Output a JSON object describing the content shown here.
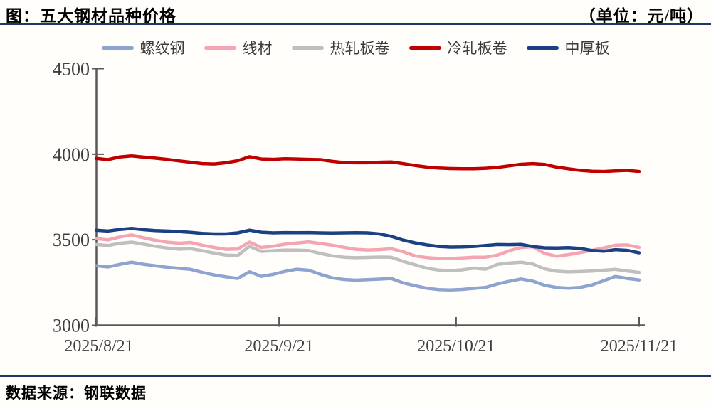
{
  "header": {
    "title": "图：五大钢材品种价格",
    "unit": "（单位：元/吨）",
    "rule_color": "#1F3864"
  },
  "footer": {
    "source": "数据来源：钢联数据",
    "rule_color": "#1F3864"
  },
  "chart_data": {
    "type": "line",
    "title": "五大钢材品种价格",
    "unit_label": "元/吨",
    "grid": false,
    "legend_position": "top",
    "axis_color": "#595959",
    "tick_label_color": "#3f3f3f",
    "ylim": [
      3000,
      4500
    ],
    "y_ticks": [
      3000,
      3500,
      4000,
      4500
    ],
    "x_tick_labels": [
      "2025/8/21",
      "2025/9/21",
      "2025/10/21",
      "2025/11/21"
    ],
    "x_tick_days": [
      0,
      31,
      61,
      92
    ],
    "x_total_days": 92,
    "sample_step_days": 2,
    "series": [
      {
        "key": "rebar",
        "name": "螺纹钢",
        "color": "#8FA3D0",
        "values": [
          3348,
          3341,
          3356,
          3369,
          3357,
          3348,
          3339,
          3333,
          3327,
          3309,
          3294,
          3283,
          3274,
          3313,
          3286,
          3298,
          3315,
          3328,
          3322,
          3298,
          3277,
          3268,
          3264,
          3267,
          3270,
          3274,
          3248,
          3232,
          3217,
          3209,
          3207,
          3210,
          3216,
          3222,
          3242,
          3257,
          3271,
          3258,
          3234,
          3221,
          3217,
          3221,
          3236,
          3261,
          3286,
          3274,
          3265
        ]
      },
      {
        "key": "wire-rod",
        "name": "线材",
        "color": "#F4A5B2",
        "values": [
          3507,
          3499,
          3516,
          3528,
          3512,
          3497,
          3486,
          3480,
          3484,
          3468,
          3455,
          3444,
          3446,
          3486,
          3455,
          3462,
          3474,
          3481,
          3488,
          3478,
          3468,
          3456,
          3444,
          3440,
          3442,
          3448,
          3430,
          3406,
          3396,
          3391,
          3390,
          3394,
          3398,
          3398,
          3410,
          3436,
          3455,
          3459,
          3420,
          3404,
          3413,
          3425,
          3438,
          3452,
          3468,
          3470,
          3455
        ]
      },
      {
        "key": "hot-rolled-coil",
        "name": "热轧板卷",
        "color": "#BFBFBF",
        "values": [
          3472,
          3466,
          3479,
          3486,
          3474,
          3462,
          3452,
          3445,
          3448,
          3436,
          3422,
          3410,
          3408,
          3462,
          3432,
          3436,
          3440,
          3439,
          3437,
          3420,
          3406,
          3398,
          3395,
          3397,
          3399,
          3398,
          3374,
          3354,
          3334,
          3323,
          3319,
          3324,
          3334,
          3328,
          3356,
          3364,
          3369,
          3358,
          3330,
          3316,
          3312,
          3314,
          3317,
          3322,
          3327,
          3317,
          3309
        ]
      },
      {
        "key": "cold-rolled-coil",
        "name": "冷轧板卷",
        "color": "#C00000",
        "values": [
          3975,
          3968,
          3984,
          3990,
          3983,
          3977,
          3970,
          3961,
          3953,
          3945,
          3943,
          3950,
          3962,
          3985,
          3972,
          3970,
          3973,
          3972,
          3970,
          3968,
          3958,
          3951,
          3950,
          3950,
          3953,
          3955,
          3945,
          3934,
          3925,
          3919,
          3916,
          3915,
          3915,
          3918,
          3923,
          3932,
          3941,
          3945,
          3940,
          3925,
          3915,
          3906,
          3901,
          3899,
          3903,
          3906,
          3899
        ]
      },
      {
        "key": "medium-plate",
        "name": "中厚板",
        "color": "#1B4184",
        "values": [
          3556,
          3551,
          3560,
          3566,
          3559,
          3554,
          3551,
          3548,
          3543,
          3537,
          3534,
          3534,
          3540,
          3556,
          3544,
          3540,
          3542,
          3541,
          3542,
          3540,
          3539,
          3540,
          3541,
          3540,
          3534,
          3520,
          3498,
          3482,
          3470,
          3461,
          3457,
          3458,
          3461,
          3466,
          3472,
          3471,
          3473,
          3460,
          3453,
          3452,
          3454,
          3449,
          3437,
          3433,
          3442,
          3438,
          3424
        ]
      }
    ]
  }
}
